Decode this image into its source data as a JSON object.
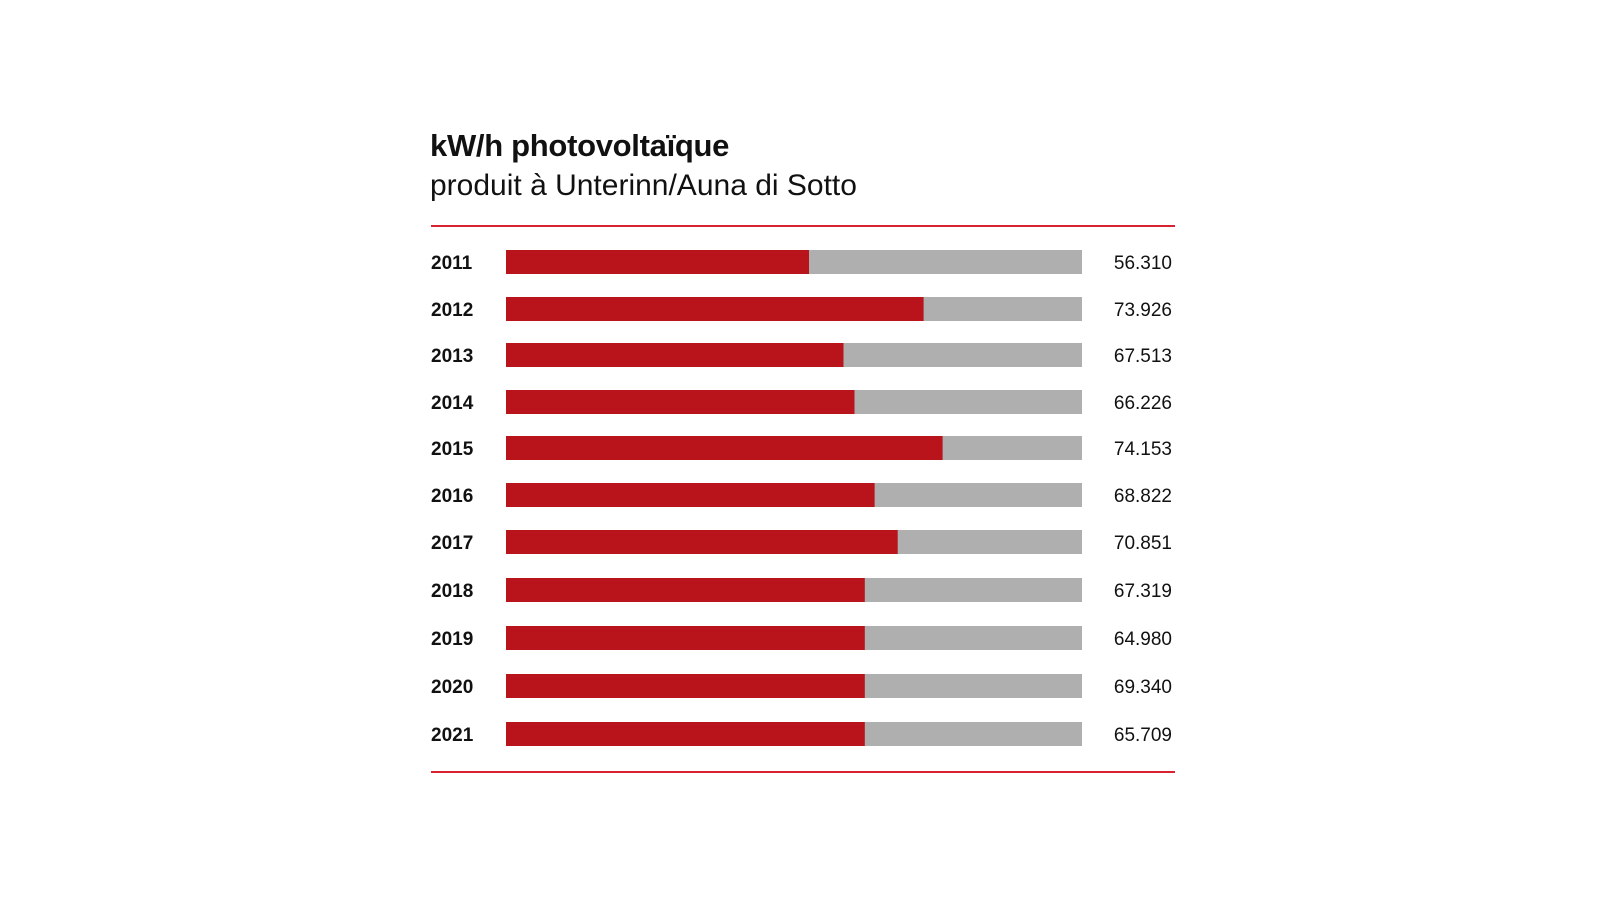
{
  "header": {
    "title": "kW/h photovoltaïque",
    "subtitle": "produit à Unterinn/Auna di Sotto"
  },
  "colors": {
    "bar": "#b9131c",
    "track": "#b0afb0",
    "rule": "#d6232f",
    "text": "#111111"
  },
  "chart_data": {
    "type": "bar",
    "orientation": "horizontal",
    "title": "kW/h photovoltaïque",
    "subtitle": "produit à Unterinn/Auna di Sotto",
    "categories": [
      "2011",
      "2012",
      "2013",
      "2014",
      "2015",
      "2016",
      "2017",
      "2018",
      "2019",
      "2020",
      "2021"
    ],
    "values": [
      56310,
      73926,
      67513,
      66226,
      74153,
      68822,
      70851,
      67319,
      64980,
      69340,
      65709
    ],
    "value_labels": [
      "56.310",
      "73.926",
      "67.513",
      "66.226",
      "74.153",
      "68.822",
      "70.851",
      "67.319",
      "64.980",
      "69.340",
      "65.709"
    ],
    "bar_fill_fraction": [
      0.526,
      0.725,
      0.586,
      0.605,
      0.758,
      0.64,
      0.68,
      0.623,
      0.623,
      0.623,
      0.623
    ],
    "xlabel": "",
    "ylabel": "",
    "grid": false,
    "legend": "none"
  }
}
